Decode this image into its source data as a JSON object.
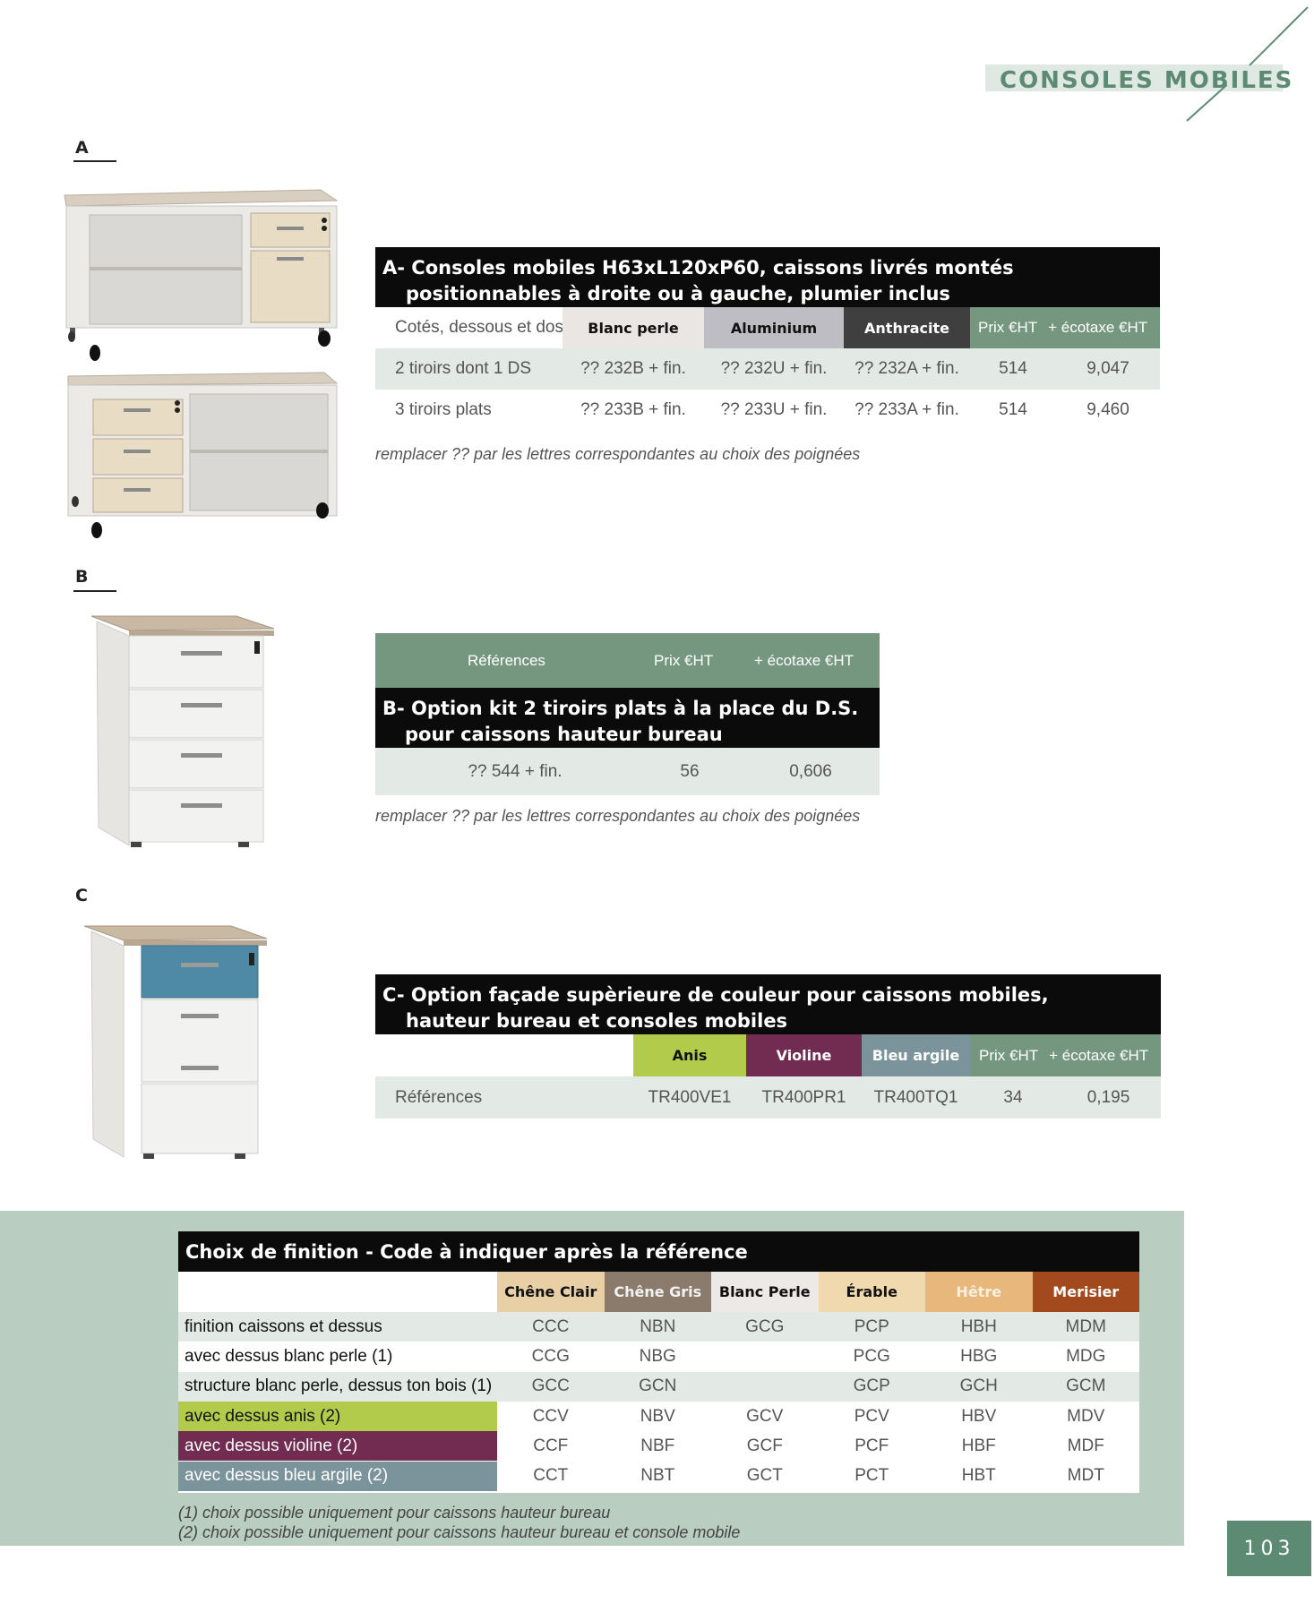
{
  "header": {
    "title": "CONSOLES MOBILES"
  },
  "sections": {
    "a": {
      "letter": "A"
    },
    "b": {
      "letter": "B"
    },
    "c": {
      "letter": "C"
    }
  },
  "table_a": {
    "title_line1": "A- Consoles mobiles H63xL120xP60, caissons livrés montés",
    "title_line2": "positionnables à droite ou à gauche, plumier inclus",
    "row_header": "Cotés, dessous et dos",
    "colors": [
      {
        "label": "Blanc perle",
        "color": "#e9e6e3"
      },
      {
        "label": "Aluminium",
        "color": "#bdbdc3"
      },
      {
        "label": "Anthracite",
        "color": "#3f3f3f"
      }
    ],
    "price_label": "Prix €HT",
    "ecotaxe_label": "+ écotaxe €HT",
    "rows": [
      {
        "label": "2 tiroirs dont 1 DS",
        "b": "?? 232B + fin.",
        "u": "?? 232U + fin.",
        "a": "?? 232A + fin.",
        "price": "514",
        "ecotaxe": "9,047"
      },
      {
        "label": "3 tiroirs plats",
        "b": "?? 233B + fin.",
        "u": "?? 233U + fin.",
        "a": "?? 233A + fin.",
        "price": "514",
        "ecotaxe": "9,460"
      }
    ],
    "note": "remplacer ?? par les lettres correspondantes au choix des poignées"
  },
  "table_b": {
    "ref_label": "Références",
    "price_label": "Prix €HT",
    "ecotaxe_label": "+ écotaxe €HT",
    "title_line1": "B- Option kit 2 tiroirs plats à la place du D.S.",
    "title_line2": "pour caissons hauteur bureau",
    "row": {
      "ref": "?? 544 + fin.",
      "price": "56",
      "ecotaxe": "0,606"
    },
    "note": "remplacer ?? par les lettres correspondantes au choix des poignées"
  },
  "table_c": {
    "title_line1": "C- Option façade supèrieure de couleur pour caissons mobiles,",
    "title_line2": "hauteur bureau et consoles mobiles",
    "colors": [
      {
        "label": "Anis",
        "color": "#b2cb4a"
      },
      {
        "label": "Violine",
        "color": "#722c52"
      },
      {
        "label": "Bleu argile",
        "color": "#7b939a"
      }
    ],
    "price_label": "Prix €HT",
    "ecotaxe_label": "+ écotaxe €HT",
    "row": {
      "label": "Références",
      "anis": "TR400VE1",
      "violine": "TR400PR1",
      "bleu": "TR400TQ1",
      "price": "34",
      "ecotaxe": "0,195"
    }
  },
  "finition": {
    "title": "Choix de finition - Code à indiquer après la référence",
    "columns": [
      {
        "label": "Chêne Clair",
        "color": "#e8cfa6",
        "text": "#111111"
      },
      {
        "label": "Chêne Gris",
        "color": "#8a7b6c",
        "text": "#f2f2f2"
      },
      {
        "label": "Blanc Perle",
        "color": "#ece9e6",
        "text": "#111111"
      },
      {
        "label": "Érable",
        "color": "#f0d9ae",
        "text": "#111111"
      },
      {
        "label": "Hêtre",
        "color": "#e7b77c",
        "text": "#fbefe0"
      },
      {
        "label": "Merisier",
        "color": "#a24a1e",
        "text": "#ffffff"
      }
    ],
    "rows": [
      {
        "label": "finition caissons et dessus",
        "label_bg": "#e3e9e5",
        "label_color": "#111111",
        "codes": [
          "CCC",
          "NBN",
          "GCG",
          "PCP",
          "HBH",
          "MDM"
        ]
      },
      {
        "label": "avec dessus blanc perle (1)",
        "label_bg": "#ffffff",
        "label_color": "#111111",
        "codes": [
          "CCG",
          "NBG",
          "",
          "PCG",
          "HBG",
          "MDG"
        ]
      },
      {
        "label": "structure blanc perle, dessus ton bois (1)",
        "label_bg": "#e3e9e5",
        "label_color": "#111111",
        "codes": [
          "GCC",
          "GCN",
          "",
          "GCP",
          "GCH",
          "GCM"
        ]
      },
      {
        "label": "avec dessus anis (2)",
        "label_bg": "#b2cb4a",
        "label_color": "#111111",
        "codes": [
          "CCV",
          "NBV",
          "GCV",
          "PCV",
          "HBV",
          "MDV"
        ]
      },
      {
        "label": "avec dessus violine (2)",
        "label_bg": "#722c52",
        "label_color": "#ffffff",
        "codes": [
          "CCF",
          "NBF",
          "GCF",
          "PCF",
          "HBF",
          "MDF"
        ]
      },
      {
        "label": "avec dessus bleu argile (2)",
        "label_bg": "#7b939a",
        "label_color": "#ffffff",
        "codes": [
          "CCT",
          "NBT",
          "GCT",
          "PCT",
          "HBT",
          "MDT"
        ]
      }
    ],
    "notes": [
      "(1) choix possible uniquement pour caissons hauteur bureau",
      "(2) choix possible uniquement pour caissons hauteur bureau et console mobile"
    ]
  },
  "page_number": "103"
}
